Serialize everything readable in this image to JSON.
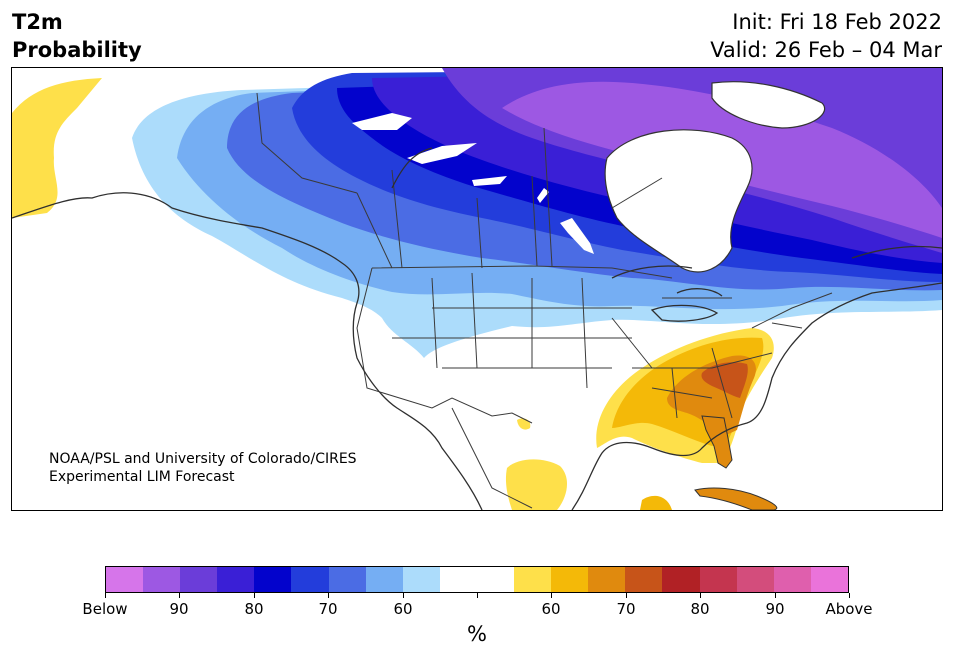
{
  "header": {
    "title_line1": "T2m",
    "title_line2": "Probability",
    "init_text": "Init: Fri 18 Feb 2022",
    "valid_text": "Valid: 26 Feb – 04 Mar"
  },
  "credit": {
    "line1": "NOAA/PSL and University of Colorado/CIRES",
    "line2": "Experimental LIM Forecast"
  },
  "colorbar": {
    "colors": [
      "#d675ea",
      "#9d58e3",
      "#6b3dd9",
      "#3a1fd6",
      "#0303cc",
      "#233ddb",
      "#4b6ce4",
      "#75aef3",
      "#acdcfb",
      "#ffffff",
      "#ffffff",
      "#fee04a",
      "#f4b908",
      "#e08a0e",
      "#c75419",
      "#b12125",
      "#c4354f",
      "#d34d7c",
      "#df5fad",
      "#ea73da"
    ],
    "labels": [
      "Below",
      "90",
      "80",
      "70",
      "60",
      "",
      "60",
      "70",
      "80",
      "90",
      "Above"
    ],
    "unit": "%"
  },
  "map_colors": {
    "b60": "#acdcfb",
    "b65": "#75aef3",
    "b70": "#4b6ce4",
    "b75": "#233ddb",
    "b80": "#0303cc",
    "b85": "#3a1fd6",
    "b90": "#6b3dd9",
    "b95": "#9d58e3",
    "a60": "#fee04a",
    "a65": "#f4b908",
    "a70": "#e08a0e",
    "a75": "#c75419"
  }
}
